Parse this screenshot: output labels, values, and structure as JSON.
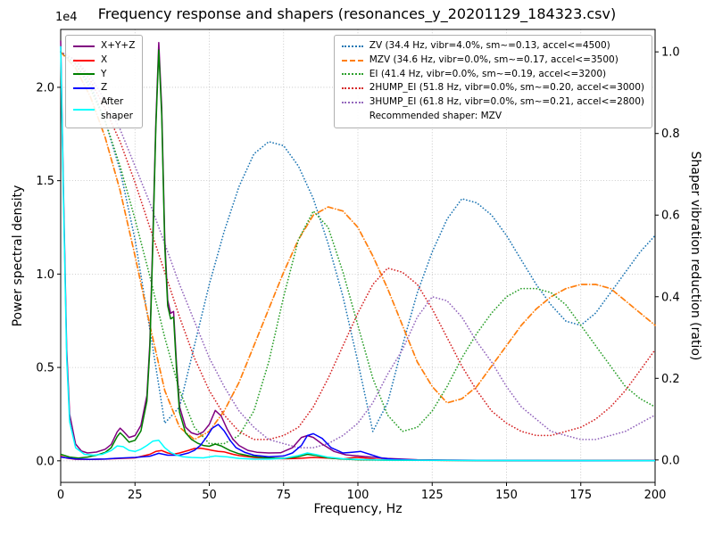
{
  "title": "Frequency response and shapers (resonances_y_20201129_184323.csv)",
  "axes": {
    "x_label": "Frequency, Hz",
    "y_left_label": "Power spectral density",
    "y_right_label": "Shaper vibration reduction (ratio)",
    "y_left_offset_text": "1e4"
  },
  "legend_psd": {
    "items": [
      {
        "label": "X+Y+Z",
        "color": "#800080",
        "style": "solid"
      },
      {
        "label": "X",
        "color": "#ff0000",
        "style": "solid"
      },
      {
        "label": "Y",
        "color": "#008000",
        "style": "solid"
      },
      {
        "label": "Z",
        "color": "#0000ff",
        "style": "solid"
      },
      {
        "label": "After\nshaper",
        "color": "#00ffff",
        "style": "solid"
      }
    ]
  },
  "legend_shapers": {
    "items": [
      {
        "label": "ZV (34.4 Hz, vibr=4.0%, sm~=0.13, accel<=4500)",
        "color": "#1f77b4",
        "style": "dotted"
      },
      {
        "label": "MZV (34.6 Hz, vibr=0.0%, sm~=0.17, accel<=3500)",
        "color": "#ff7f0e",
        "style": "dashdot"
      },
      {
        "label": "EI (41.4 Hz, vibr=0.0%, sm~=0.19, accel<=3200)",
        "color": "#2ca02c",
        "style": "dotted"
      },
      {
        "label": "2HUMP_EI (51.8 Hz, vibr=0.0%, sm~=0.20, accel<=3000)",
        "color": "#d62728",
        "style": "dotted"
      },
      {
        "label": "3HUMP_EI (61.8 Hz, vibr=0.0%, sm~=0.21, accel<=2800)",
        "color": "#9467bd",
        "style": "dotted"
      }
    ],
    "note": "Recommended shaper: MZV"
  },
  "chart_data": {
    "type": "line",
    "title": "Frequency response and shapers (resonances_y_20201129_184323.csv)",
    "xlabel": "Frequency, Hz",
    "ylabel_left": "Power spectral density",
    "ylabel_right": "Shaper vibration reduction (ratio)",
    "xlim": [
      0,
      200
    ],
    "ylim_left": [
      -1155,
      23100
    ],
    "ylim_right": [
      -0.055,
      1.055
    ],
    "grid": true,
    "x_ticks": [
      0,
      25,
      50,
      75,
      100,
      125,
      150,
      175,
      200
    ],
    "y_left_ticks": [
      0,
      5000,
      10000,
      15000,
      20000
    ],
    "y_left_tick_labels": [
      "0.0",
      "0.5",
      "1.0",
      "1.5",
      "2.0"
    ],
    "y_left_offset_text": "1e4",
    "y_right_ticks": [
      0,
      0.2,
      0.4,
      0.6,
      0.8,
      1.0
    ],
    "y_right_tick_labels": [
      "0.0",
      "0.2",
      "0.4",
      "0.6",
      "0.8",
      "1.0"
    ],
    "psd_series": [
      {
        "name": "X+Y+Z",
        "color": "#800080",
        "style": "solid",
        "x": [
          0,
          1,
          2,
          3,
          5,
          7,
          9,
          12,
          15,
          17,
          19,
          20,
          21,
          23,
          25,
          27,
          29,
          30,
          31,
          32,
          33,
          34,
          35,
          36,
          37,
          38,
          39,
          40,
          42,
          44,
          46,
          48,
          50,
          52,
          54,
          56,
          58,
          60,
          63,
          66,
          70,
          74,
          78,
          81,
          83,
          85,
          88,
          92,
          96,
          100,
          105,
          110,
          120,
          140,
          170,
          200
        ],
        "y": [
          22500,
          14000,
          6000,
          2500,
          900,
          520,
          420,
          470,
          620,
          880,
          1550,
          1750,
          1600,
          1250,
          1350,
          1900,
          3500,
          6300,
          11900,
          18100,
          22400,
          18900,
          11900,
          8600,
          7900,
          8000,
          5100,
          2900,
          1800,
          1500,
          1400,
          1550,
          1950,
          2700,
          2400,
          1700,
          1150,
          820,
          560,
          460,
          420,
          430,
          700,
          1250,
          1350,
          1250,
          900,
          500,
          320,
          260,
          190,
          130,
          60,
          30,
          20,
          20
        ]
      },
      {
        "name": "X",
        "color": "#ff0000",
        "style": "solid",
        "x": [
          0,
          2,
          5,
          10,
          15,
          20,
          25,
          30,
          32,
          34,
          36,
          38,
          40,
          43,
          45,
          47,
          49,
          51,
          53,
          55,
          58,
          60,
          65,
          70,
          75,
          80,
          85,
          90,
          95,
          99,
          102,
          106,
          110,
          130,
          160,
          200
        ],
        "y": [
          250,
          150,
          80,
          70,
          90,
          130,
          160,
          350,
          500,
          550,
          420,
          360,
          420,
          560,
          660,
          680,
          620,
          560,
          500,
          480,
          350,
          280,
          180,
          130,
          110,
          130,
          180,
          150,
          100,
          180,
          160,
          80,
          50,
          20,
          10,
          10
        ]
      },
      {
        "name": "Y",
        "color": "#008000",
        "style": "solid",
        "x": [
          0,
          3,
          6,
          9,
          12,
          15,
          17,
          19,
          20,
          21,
          23,
          25,
          27,
          29,
          30,
          31,
          32,
          33,
          34,
          35,
          36,
          37,
          38,
          39,
          40,
          42,
          44,
          46,
          48,
          50,
          52,
          54,
          57,
          60,
          64,
          68,
          72,
          76,
          80,
          83,
          86,
          90,
          95,
          100,
          110,
          120,
          140,
          170,
          200
        ],
        "y": [
          350,
          200,
          150,
          200,
          300,
          450,
          700,
          1300,
          1500,
          1350,
          1000,
          1100,
          1600,
          3200,
          6000,
          11500,
          17800,
          22000,
          18500,
          11500,
          8300,
          7600,
          7700,
          4800,
          2600,
          1500,
          1150,
          950,
          820,
          780,
          900,
          800,
          550,
          380,
          250,
          180,
          150,
          140,
          220,
          350,
          280,
          160,
          90,
          60,
          35,
          25,
          15,
          10,
          10
        ]
      },
      {
        "name": "Z",
        "color": "#0000ff",
        "style": "solid",
        "x": [
          0,
          5,
          10,
          15,
          20,
          25,
          30,
          33,
          36,
          40,
          43,
          45,
          47,
          49,
          51,
          53,
          55,
          57,
          59,
          62,
          65,
          70,
          75,
          78,
          81,
          83,
          85,
          88,
          91,
          95,
          98,
          101,
          104,
          108,
          112,
          120,
          140,
          170,
          200
        ],
        "y": [
          200,
          100,
          80,
          100,
          150,
          180,
          250,
          400,
          300,
          300,
          420,
          560,
          820,
          1250,
          1750,
          1950,
          1600,
          1100,
          700,
          450,
          300,
          220,
          260,
          420,
          820,
          1350,
          1450,
          1200,
          700,
          420,
          460,
          500,
          350,
          150,
          80,
          40,
          20,
          10,
          10
        ]
      },
      {
        "name": "After shaper",
        "color": "#00ffff",
        "style": "solid",
        "x": [
          0,
          1,
          2,
          3,
          5,
          8,
          11,
          14,
          17,
          19,
          21,
          23,
          25,
          27,
          29,
          31,
          33,
          35,
          37,
          39,
          41,
          44,
          48,
          52,
          56,
          60,
          65,
          70,
          75,
          80,
          83,
          86,
          90,
          95,
          100,
          110,
          130,
          160,
          200
        ],
        "y": [
          22200,
          13500,
          5500,
          2100,
          700,
          350,
          300,
          350,
          550,
          800,
          760,
          560,
          500,
          620,
          820,
          1050,
          1100,
          700,
          450,
          300,
          220,
          180,
          160,
          260,
          210,
          130,
          90,
          90,
          130,
          280,
          420,
          330,
          190,
          110,
          70,
          40,
          25,
          15,
          10
        ]
      }
    ],
    "shaper_freq": [
      0,
      5,
      10,
      15,
      20,
      25,
      30,
      35,
      40,
      45,
      50,
      55,
      60,
      65,
      70,
      75,
      80,
      85,
      90,
      95,
      100,
      105,
      110,
      115,
      120,
      125,
      130,
      135,
      140,
      145,
      150,
      155,
      160,
      165,
      170,
      175,
      180,
      185,
      190,
      195,
      200
    ],
    "shaper_series": [
      {
        "name": "ZV",
        "color": "#1f77b4",
        "style": "dotted",
        "y": [
          1.0,
          0.97,
          0.92,
          0.83,
          0.71,
          0.54,
          0.32,
          0.09,
          0.13,
          0.28,
          0.43,
          0.56,
          0.67,
          0.75,
          0.78,
          0.77,
          0.72,
          0.64,
          0.53,
          0.4,
          0.24,
          0.07,
          0.14,
          0.28,
          0.41,
          0.51,
          0.59,
          0.64,
          0.63,
          0.6,
          0.55,
          0.49,
          0.43,
          0.38,
          0.34,
          0.33,
          0.36,
          0.41,
          0.46,
          0.51,
          0.55
        ]
      },
      {
        "name": "MZV",
        "color": "#ff7f0e",
        "style": "dashdot",
        "y": [
          1.0,
          0.96,
          0.89,
          0.79,
          0.66,
          0.5,
          0.33,
          0.17,
          0.08,
          0.05,
          0.07,
          0.12,
          0.19,
          0.28,
          0.37,
          0.46,
          0.54,
          0.6,
          0.62,
          0.61,
          0.57,
          0.5,
          0.42,
          0.33,
          0.24,
          0.18,
          0.14,
          0.15,
          0.18,
          0.23,
          0.28,
          0.33,
          0.37,
          0.4,
          0.42,
          0.43,
          0.43,
          0.42,
          0.39,
          0.36,
          0.33
        ]
      },
      {
        "name": "EI",
        "color": "#2ca02c",
        "style": "dotted",
        "y": [
          1.0,
          0.97,
          0.91,
          0.83,
          0.72,
          0.59,
          0.45,
          0.3,
          0.17,
          0.08,
          0.04,
          0.04,
          0.06,
          0.12,
          0.24,
          0.4,
          0.54,
          0.61,
          0.57,
          0.46,
          0.33,
          0.2,
          0.11,
          0.07,
          0.08,
          0.12,
          0.18,
          0.25,
          0.31,
          0.36,
          0.4,
          0.42,
          0.42,
          0.41,
          0.38,
          0.33,
          0.28,
          0.23,
          0.18,
          0.15,
          0.13
        ]
      },
      {
        "name": "2HUMP_EI",
        "color": "#d62728",
        "style": "dotted",
        "y": [
          1.0,
          0.98,
          0.93,
          0.86,
          0.78,
          0.68,
          0.57,
          0.46,
          0.35,
          0.25,
          0.17,
          0.11,
          0.07,
          0.05,
          0.05,
          0.06,
          0.08,
          0.13,
          0.2,
          0.28,
          0.36,
          0.43,
          0.47,
          0.46,
          0.43,
          0.37,
          0.3,
          0.23,
          0.17,
          0.12,
          0.09,
          0.07,
          0.06,
          0.06,
          0.07,
          0.08,
          0.1,
          0.13,
          0.17,
          0.22,
          0.27
        ]
      },
      {
        "name": "3HUMP_EI",
        "color": "#9467bd",
        "style": "dotted",
        "y": [
          1.0,
          0.98,
          0.94,
          0.88,
          0.81,
          0.72,
          0.63,
          0.53,
          0.43,
          0.34,
          0.25,
          0.18,
          0.12,
          0.08,
          0.05,
          0.04,
          0.03,
          0.03,
          0.04,
          0.06,
          0.09,
          0.14,
          0.21,
          0.27,
          0.35,
          0.4,
          0.39,
          0.35,
          0.29,
          0.24,
          0.18,
          0.13,
          0.1,
          0.07,
          0.06,
          0.05,
          0.05,
          0.06,
          0.07,
          0.09,
          0.11
        ]
      }
    ]
  }
}
